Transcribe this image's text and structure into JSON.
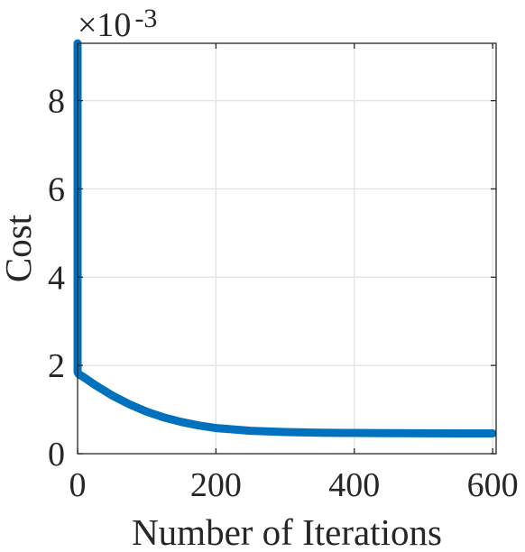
{
  "chart_data": {
    "type": "line",
    "xlabel": "Number of Iterations",
    "ylabel": "Cost",
    "y_exponent": {
      "times": "×10",
      "power": "-3"
    },
    "xlim": [
      0,
      605
    ],
    "ylim": [
      0,
      9.3
    ],
    "x_ticks": [
      0,
      200,
      400,
      600
    ],
    "x_tick_labels": [
      "0",
      "200",
      "400",
      "600"
    ],
    "y_ticks": [
      0,
      2,
      4,
      6,
      8
    ],
    "y_tick_labels": [
      "0",
      "2",
      "4",
      "6",
      "8"
    ],
    "grid": true,
    "series_color": "#0072BD",
    "series": [
      {
        "x": [
          0,
          0,
          1,
          2,
          10,
          25,
          50,
          75,
          100,
          125,
          150,
          175,
          200,
          250,
          300,
          350,
          400,
          450,
          500,
          550,
          600
        ],
        "y": [
          9.3,
          1.85,
          1.82,
          1.8,
          1.72,
          1.56,
          1.32,
          1.12,
          0.95,
          0.82,
          0.72,
          0.64,
          0.58,
          0.52,
          0.49,
          0.475,
          0.47,
          0.465,
          0.462,
          0.46,
          0.46
        ]
      }
    ]
  }
}
